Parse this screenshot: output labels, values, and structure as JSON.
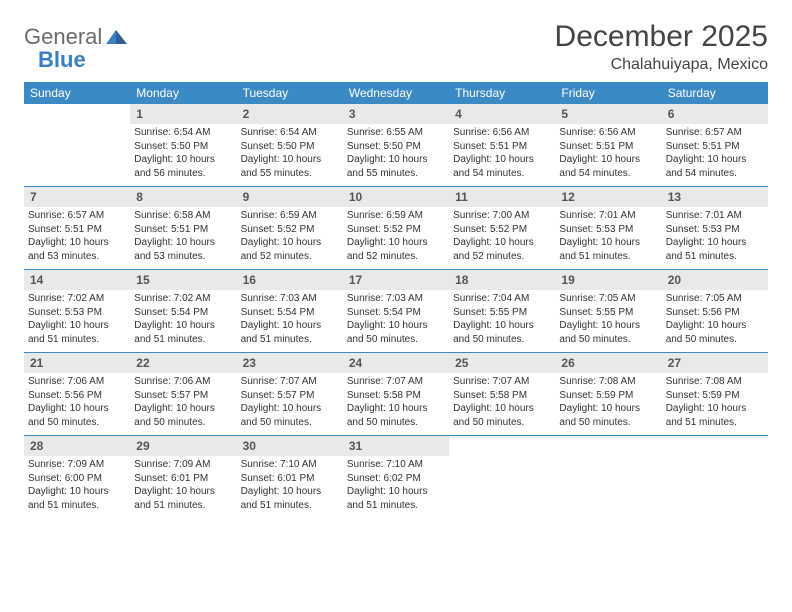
{
  "brand": {
    "part1": "General",
    "part2": "Blue"
  },
  "title": "December 2025",
  "location": "Chalahuiyapa, Mexico",
  "colors": {
    "header_bg": "#3b8ac4",
    "header_text": "#ffffff",
    "daynum_bg": "#e9e9e9",
    "body_text": "#333333",
    "rule": "#3b8ac4"
  },
  "weekdays": [
    "Sunday",
    "Monday",
    "Tuesday",
    "Wednesday",
    "Thursday",
    "Friday",
    "Saturday"
  ],
  "weeks": [
    [
      {
        "n": "",
        "sr": "",
        "ss": "",
        "dl": ""
      },
      {
        "n": "1",
        "sr": "Sunrise: 6:54 AM",
        "ss": "Sunset: 5:50 PM",
        "dl": "Daylight: 10 hours and 56 minutes."
      },
      {
        "n": "2",
        "sr": "Sunrise: 6:54 AM",
        "ss": "Sunset: 5:50 PM",
        "dl": "Daylight: 10 hours and 55 minutes."
      },
      {
        "n": "3",
        "sr": "Sunrise: 6:55 AM",
        "ss": "Sunset: 5:50 PM",
        "dl": "Daylight: 10 hours and 55 minutes."
      },
      {
        "n": "4",
        "sr": "Sunrise: 6:56 AM",
        "ss": "Sunset: 5:51 PM",
        "dl": "Daylight: 10 hours and 54 minutes."
      },
      {
        "n": "5",
        "sr": "Sunrise: 6:56 AM",
        "ss": "Sunset: 5:51 PM",
        "dl": "Daylight: 10 hours and 54 minutes."
      },
      {
        "n": "6",
        "sr": "Sunrise: 6:57 AM",
        "ss": "Sunset: 5:51 PM",
        "dl": "Daylight: 10 hours and 54 minutes."
      }
    ],
    [
      {
        "n": "7",
        "sr": "Sunrise: 6:57 AM",
        "ss": "Sunset: 5:51 PM",
        "dl": "Daylight: 10 hours and 53 minutes."
      },
      {
        "n": "8",
        "sr": "Sunrise: 6:58 AM",
        "ss": "Sunset: 5:51 PM",
        "dl": "Daylight: 10 hours and 53 minutes."
      },
      {
        "n": "9",
        "sr": "Sunrise: 6:59 AM",
        "ss": "Sunset: 5:52 PM",
        "dl": "Daylight: 10 hours and 52 minutes."
      },
      {
        "n": "10",
        "sr": "Sunrise: 6:59 AM",
        "ss": "Sunset: 5:52 PM",
        "dl": "Daylight: 10 hours and 52 minutes."
      },
      {
        "n": "11",
        "sr": "Sunrise: 7:00 AM",
        "ss": "Sunset: 5:52 PM",
        "dl": "Daylight: 10 hours and 52 minutes."
      },
      {
        "n": "12",
        "sr": "Sunrise: 7:01 AM",
        "ss": "Sunset: 5:53 PM",
        "dl": "Daylight: 10 hours and 51 minutes."
      },
      {
        "n": "13",
        "sr": "Sunrise: 7:01 AM",
        "ss": "Sunset: 5:53 PM",
        "dl": "Daylight: 10 hours and 51 minutes."
      }
    ],
    [
      {
        "n": "14",
        "sr": "Sunrise: 7:02 AM",
        "ss": "Sunset: 5:53 PM",
        "dl": "Daylight: 10 hours and 51 minutes."
      },
      {
        "n": "15",
        "sr": "Sunrise: 7:02 AM",
        "ss": "Sunset: 5:54 PM",
        "dl": "Daylight: 10 hours and 51 minutes."
      },
      {
        "n": "16",
        "sr": "Sunrise: 7:03 AM",
        "ss": "Sunset: 5:54 PM",
        "dl": "Daylight: 10 hours and 51 minutes."
      },
      {
        "n": "17",
        "sr": "Sunrise: 7:03 AM",
        "ss": "Sunset: 5:54 PM",
        "dl": "Daylight: 10 hours and 50 minutes."
      },
      {
        "n": "18",
        "sr": "Sunrise: 7:04 AM",
        "ss": "Sunset: 5:55 PM",
        "dl": "Daylight: 10 hours and 50 minutes."
      },
      {
        "n": "19",
        "sr": "Sunrise: 7:05 AM",
        "ss": "Sunset: 5:55 PM",
        "dl": "Daylight: 10 hours and 50 minutes."
      },
      {
        "n": "20",
        "sr": "Sunrise: 7:05 AM",
        "ss": "Sunset: 5:56 PM",
        "dl": "Daylight: 10 hours and 50 minutes."
      }
    ],
    [
      {
        "n": "21",
        "sr": "Sunrise: 7:06 AM",
        "ss": "Sunset: 5:56 PM",
        "dl": "Daylight: 10 hours and 50 minutes."
      },
      {
        "n": "22",
        "sr": "Sunrise: 7:06 AM",
        "ss": "Sunset: 5:57 PM",
        "dl": "Daylight: 10 hours and 50 minutes."
      },
      {
        "n": "23",
        "sr": "Sunrise: 7:07 AM",
        "ss": "Sunset: 5:57 PM",
        "dl": "Daylight: 10 hours and 50 minutes."
      },
      {
        "n": "24",
        "sr": "Sunrise: 7:07 AM",
        "ss": "Sunset: 5:58 PM",
        "dl": "Daylight: 10 hours and 50 minutes."
      },
      {
        "n": "25",
        "sr": "Sunrise: 7:07 AM",
        "ss": "Sunset: 5:58 PM",
        "dl": "Daylight: 10 hours and 50 minutes."
      },
      {
        "n": "26",
        "sr": "Sunrise: 7:08 AM",
        "ss": "Sunset: 5:59 PM",
        "dl": "Daylight: 10 hours and 50 minutes."
      },
      {
        "n": "27",
        "sr": "Sunrise: 7:08 AM",
        "ss": "Sunset: 5:59 PM",
        "dl": "Daylight: 10 hours and 51 minutes."
      }
    ],
    [
      {
        "n": "28",
        "sr": "Sunrise: 7:09 AM",
        "ss": "Sunset: 6:00 PM",
        "dl": "Daylight: 10 hours and 51 minutes."
      },
      {
        "n": "29",
        "sr": "Sunrise: 7:09 AM",
        "ss": "Sunset: 6:01 PM",
        "dl": "Daylight: 10 hours and 51 minutes."
      },
      {
        "n": "30",
        "sr": "Sunrise: 7:10 AM",
        "ss": "Sunset: 6:01 PM",
        "dl": "Daylight: 10 hours and 51 minutes."
      },
      {
        "n": "31",
        "sr": "Sunrise: 7:10 AM",
        "ss": "Sunset: 6:02 PM",
        "dl": "Daylight: 10 hours and 51 minutes."
      },
      {
        "n": "",
        "sr": "",
        "ss": "",
        "dl": ""
      },
      {
        "n": "",
        "sr": "",
        "ss": "",
        "dl": ""
      },
      {
        "n": "",
        "sr": "",
        "ss": "",
        "dl": ""
      }
    ]
  ]
}
